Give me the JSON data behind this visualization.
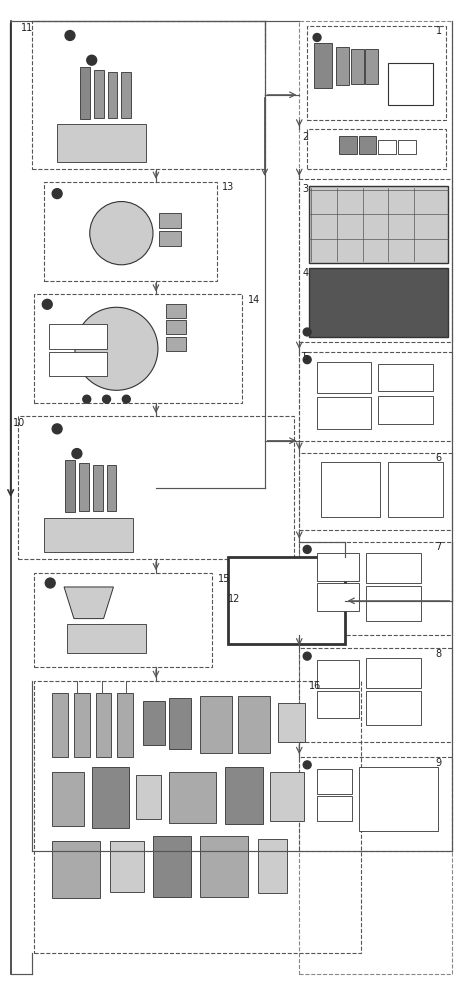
{
  "fig_width": 4.75,
  "fig_height": 10.0,
  "bg_color": "#ffffff",
  "lc": "#555555",
  "dc": "#444444"
}
